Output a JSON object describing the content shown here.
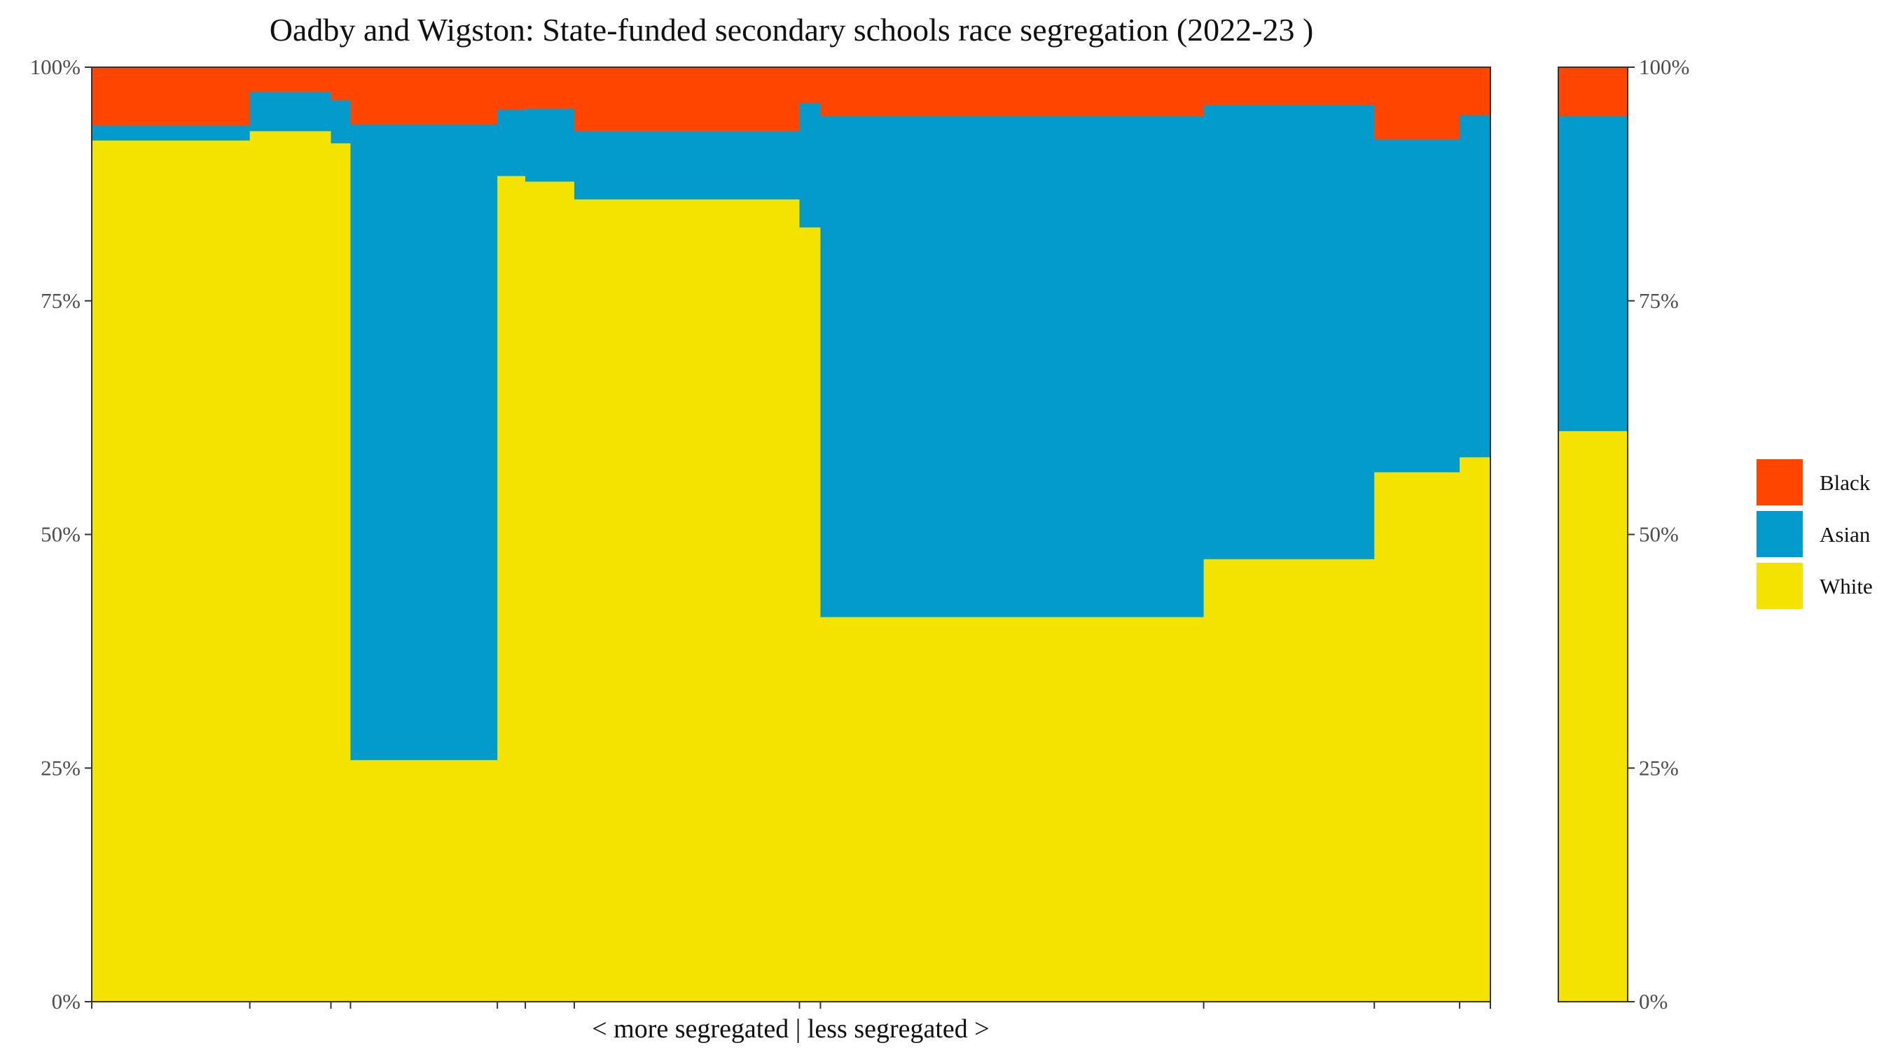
{
  "chart_data": {
    "type": "bar",
    "title": "Oadby and Wigston: State-funded secondary schools race segregation (2022-23 )",
    "xlabel": "< more segregated | less segregated >",
    "ylabel": "",
    "ylim": [
      0,
      1
    ],
    "y_ticks": [
      {
        "value": 0,
        "label": "0%"
      },
      {
        "value": 0.25,
        "label": "25%"
      },
      {
        "value": 0.5,
        "label": "50%"
      },
      {
        "value": 0.75,
        "label": "75%"
      },
      {
        "value": 1,
        "label": "100%"
      }
    ],
    "stack_order": [
      "White",
      "Asian",
      "Black"
    ],
    "legend": {
      "position": "right",
      "entries": [
        {
          "name": "Black",
          "color": "#FF4500"
        },
        {
          "name": "Asian",
          "color": "#029BCC"
        },
        {
          "name": "White",
          "color": "#F4E300"
        }
      ]
    },
    "colors": {
      "Black": "#FF4500",
      "Asian": "#029BCC",
      "White": "#F4E300"
    },
    "x_breaks": [
      0,
      0.113,
      0.171,
      0.185,
      0.29,
      0.31,
      0.345,
      0.506,
      0.521,
      0.795,
      0.917,
      0.978,
      1.0
    ],
    "schools": [
      {
        "x0": 0.0,
        "x1": 0.113,
        "White": 0.922,
        "Asian": 0.016,
        "Black": 0.062
      },
      {
        "x0": 0.113,
        "x1": 0.171,
        "White": 0.932,
        "Asian": 0.042,
        "Black": 0.026
      },
      {
        "x0": 0.171,
        "x1": 0.185,
        "White": 0.919,
        "Asian": 0.046,
        "Black": 0.035
      },
      {
        "x0": 0.185,
        "x1": 0.29,
        "White": 0.259,
        "Asian": 0.68,
        "Black": 0.061
      },
      {
        "x0": 0.29,
        "x1": 0.31,
        "White": 0.884,
        "Asian": 0.071,
        "Black": 0.045
      },
      {
        "x0": 0.31,
        "x1": 0.345,
        "White": 0.878,
        "Asian": 0.078,
        "Black": 0.044
      },
      {
        "x0": 0.345,
        "x1": 0.506,
        "White": 0.859,
        "Asian": 0.073,
        "Black": 0.068
      },
      {
        "x0": 0.506,
        "x1": 0.521,
        "White": 0.829,
        "Asian": 0.133,
        "Black": 0.038
      },
      {
        "x0": 0.521,
        "x1": 0.795,
        "White": 0.412,
        "Asian": 0.536,
        "Black": 0.052
      },
      {
        "x0": 0.795,
        "x1": 0.917,
        "White": 0.474,
        "Asian": 0.486,
        "Black": 0.04
      },
      {
        "x0": 0.917,
        "x1": 0.978,
        "White": 0.567,
        "Asian": 0.356,
        "Black": 0.077
      },
      {
        "x0": 0.978,
        "x1": 1.0,
        "White": 0.583,
        "Asian": 0.366,
        "Black": 0.051
      }
    ],
    "overall": {
      "White": 0.611,
      "Asian": 0.337,
      "Black": 0.052
    }
  }
}
